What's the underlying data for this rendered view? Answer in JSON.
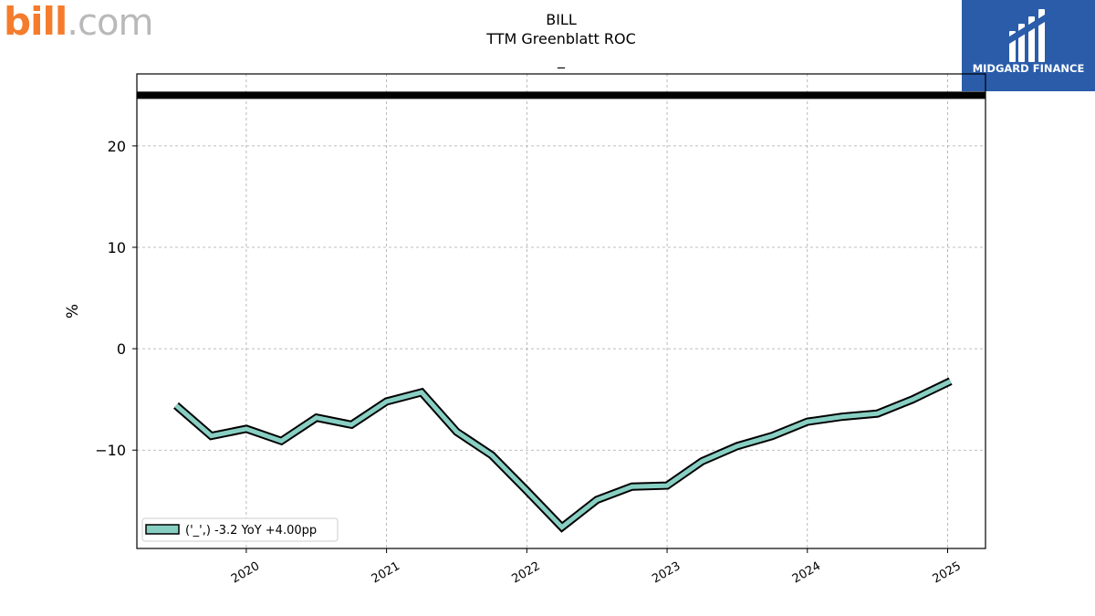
{
  "brand": {
    "logo_left_text_main": "bill",
    "logo_left_text_suffix": ".com",
    "logo_right_text": "MIDGARD FINANCE",
    "logo_right_bg": "#2a5caa"
  },
  "header": {
    "ticker": "BILL",
    "metric": "TTM Greenblatt ROC",
    "subtitle": "_"
  },
  "chart_data": {
    "type": "line",
    "title": "TTM Greenblatt ROC",
    "ylabel": "%",
    "xlabel": "",
    "ylim": [
      -19.7,
      27.1
    ],
    "xlim": [
      2019.22,
      2025.27
    ],
    "yticks": [
      -10,
      0,
      10,
      20
    ],
    "ytick_labels": [
      "−10",
      "0",
      "10",
      "20"
    ],
    "xticks": [
      2020,
      2021,
      2022,
      2023,
      2024,
      2025
    ],
    "xtick_labels": [
      "2020",
      "2021",
      "2022",
      "2023",
      "2024",
      "2025"
    ],
    "grid": true,
    "reference_line": 25,
    "series": [
      {
        "name": "('_',) -3.2 YoY +4.00pp",
        "color": "#88cfc3",
        "edge_color": "#000000",
        "x": [
          2019.5,
          2019.75,
          2020.0,
          2020.25,
          2020.5,
          2020.75,
          2021.0,
          2021.25,
          2021.5,
          2021.75,
          2022.0,
          2022.25,
          2022.5,
          2022.75,
          2023.0,
          2023.25,
          2023.5,
          2023.75,
          2024.0,
          2024.25,
          2024.5,
          2024.75,
          2025.02
        ],
        "values": [
          -5.6,
          -8.6,
          -7.9,
          -9.1,
          -6.8,
          -7.5,
          -5.2,
          -4.3,
          -8.2,
          -10.5,
          -14.0,
          -17.6,
          -14.9,
          -13.6,
          -13.5,
          -11.1,
          -9.6,
          -8.6,
          -7.2,
          -6.7,
          -6.4,
          -5.0,
          -3.2
        ]
      }
    ],
    "legend": {
      "position": "lower-left",
      "label": "('_',) -3.2 YoY +4.00pp"
    }
  }
}
